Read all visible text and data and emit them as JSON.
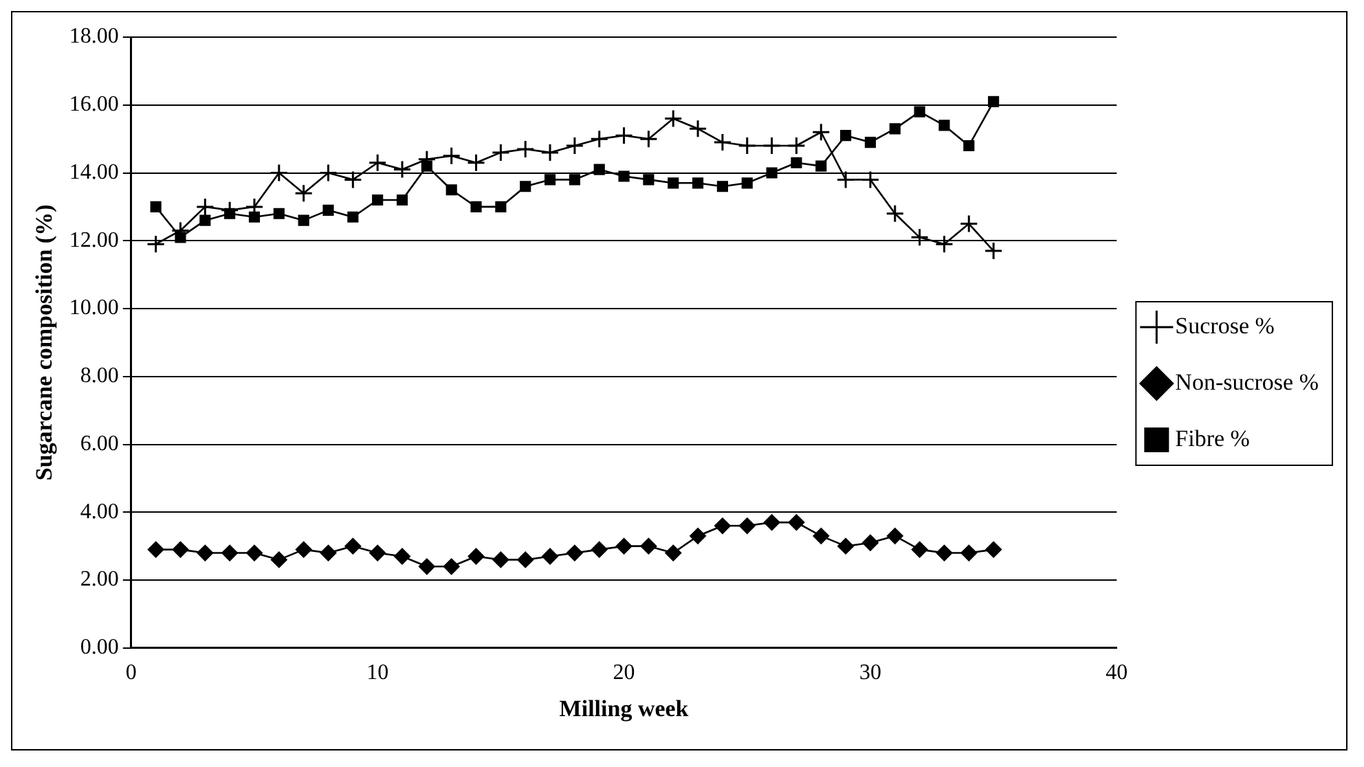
{
  "chart_data": {
    "type": "line",
    "xlabel": "Milling week",
    "ylabel": "Sugarcane composition (%)",
    "x": [
      1,
      2,
      3,
      4,
      5,
      6,
      7,
      8,
      9,
      10,
      11,
      12,
      13,
      14,
      15,
      16,
      17,
      18,
      19,
      20,
      21,
      22,
      23,
      24,
      25,
      26,
      27,
      28,
      29,
      30,
      31,
      32,
      33,
      34,
      35
    ],
    "series": [
      {
        "name": "Sucrose %",
        "color": "#000000",
        "marker": "cross",
        "values": [
          11.9,
          12.3,
          13.0,
          12.9,
          13.0,
          14.0,
          13.4,
          14.0,
          13.8,
          14.3,
          14.1,
          14.4,
          14.5,
          14.3,
          14.6,
          14.7,
          14.6,
          14.8,
          15.0,
          15.1,
          15.0,
          15.6,
          15.3,
          14.9,
          14.8,
          14.8,
          14.8,
          15.2,
          13.8,
          13.8,
          12.8,
          12.1,
          11.9,
          12.5,
          11.7
        ]
      },
      {
        "name": "Non-sucrose %",
        "color": "#000000",
        "marker": "diamond",
        "values": [
          2.9,
          2.9,
          2.8,
          2.8,
          2.8,
          2.6,
          2.9,
          2.8,
          3.0,
          2.8,
          2.7,
          2.4,
          2.4,
          2.7,
          2.6,
          2.6,
          2.7,
          2.8,
          2.9,
          3.0,
          3.0,
          2.8,
          3.3,
          3.6,
          3.6,
          3.7,
          3.7,
          3.3,
          3.0,
          3.1,
          3.3,
          2.9,
          2.8,
          2.8,
          2.9
        ]
      },
      {
        "name": "Fibre %",
        "color": "#000000",
        "marker": "square",
        "values": [
          13.0,
          12.1,
          12.6,
          12.8,
          12.7,
          12.8,
          12.6,
          12.9,
          12.7,
          13.2,
          13.2,
          14.2,
          13.5,
          13.0,
          13.0,
          13.6,
          13.8,
          13.8,
          14.1,
          13.9,
          13.8,
          13.7,
          13.7,
          13.6,
          13.7,
          14.0,
          14.3,
          14.2,
          15.1,
          14.9,
          15.3,
          15.8,
          15.4,
          14.8,
          16.1
        ]
      }
    ],
    "xlim": [
      0,
      40
    ],
    "xticks": [
      0,
      10,
      20,
      30,
      40
    ],
    "ylim": [
      0,
      18
    ],
    "yticks": [
      {
        "value": 0,
        "label": "0.00"
      },
      {
        "value": 2,
        "label": "2.00"
      },
      {
        "value": 4,
        "label": "4.00"
      },
      {
        "value": 6,
        "label": "6.00"
      },
      {
        "value": 8,
        "label": "8.00"
      },
      {
        "value": 10,
        "label": "10.00"
      },
      {
        "value": 12,
        "label": "12.00"
      },
      {
        "value": 14,
        "label": "14.00"
      },
      {
        "value": 16,
        "label": "16.00"
      },
      {
        "value": 18,
        "label": "18.00"
      }
    ],
    "grid": "y",
    "legend": "right"
  }
}
